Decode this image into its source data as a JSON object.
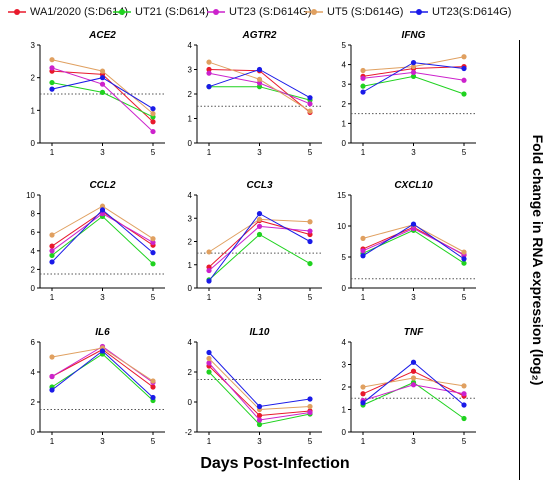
{
  "legend": [
    {
      "name": "WA1/2020 (S:D614)",
      "color": "#e8192c"
    },
    {
      "name": "UT21 (S:D614)",
      "color": "#1fd21f"
    },
    {
      "name": "UT23 (S:D614G)",
      "color": "#cc22cc"
    },
    {
      "name": "UT5 (S:D614G)",
      "color": "#e0a060"
    },
    {
      "name": "UT23(S:D614G)",
      "color": "#1a1ae8"
    }
  ],
  "y_axis_label": "Fold change in RNA expression (log₂)",
  "x_axis_label": "Days Post-Infection",
  "chart_data": [
    {
      "type": "line",
      "title": "ACE2",
      "x": [
        1,
        3,
        5
      ],
      "ylim": [
        0,
        3
      ],
      "yticks": [
        0,
        1,
        2,
        3
      ],
      "threshold": 1.5,
      "series": [
        {
          "name": "WA1/2020 (S:D614)",
          "values": [
            2.2,
            2.1,
            0.65
          ]
        },
        {
          "name": "UT21 (S:D614)",
          "values": [
            1.85,
            1.55,
            0.8
          ]
        },
        {
          "name": "UT23 (S:D614G)",
          "values": [
            2.3,
            1.8,
            0.35
          ]
        },
        {
          "name": "UT5 (S:D614G)",
          "values": [
            2.55,
            2.2,
            0.9
          ]
        },
        {
          "name": "UT23(S:D614G)",
          "values": [
            1.65,
            2.0,
            1.05
          ]
        }
      ]
    },
    {
      "type": "line",
      "title": "AGTR2",
      "x": [
        1,
        3,
        5
      ],
      "ylim": [
        0,
        4
      ],
      "yticks": [
        0,
        1,
        2,
        3,
        4
      ],
      "threshold": 1.5,
      "series": [
        {
          "name": "WA1/2020 (S:D614)",
          "values": [
            3.0,
            2.95,
            1.25
          ]
        },
        {
          "name": "UT21 (S:D614)",
          "values": [
            2.3,
            2.3,
            1.75
          ]
        },
        {
          "name": "UT23 (S:D614G)",
          "values": [
            2.85,
            2.45,
            1.6
          ]
        },
        {
          "name": "UT5 (S:D614G)",
          "values": [
            3.3,
            2.6,
            1.3
          ]
        },
        {
          "name": "UT23(S:D614G)",
          "values": [
            2.3,
            3.0,
            1.85
          ]
        }
      ]
    },
    {
      "type": "line",
      "title": "IFNG",
      "x": [
        1,
        3,
        5
      ],
      "ylim": [
        0,
        5
      ],
      "yticks": [
        0,
        1,
        2,
        3,
        4,
        5
      ],
      "threshold": 1.5,
      "series": [
        {
          "name": "WA1/2020 (S:D614)",
          "values": [
            3.4,
            3.8,
            3.9
          ]
        },
        {
          "name": "UT21 (S:D614)",
          "values": [
            2.9,
            3.4,
            2.5
          ]
        },
        {
          "name": "UT23 (S:D614G)",
          "values": [
            3.3,
            3.6,
            3.2
          ]
        },
        {
          "name": "UT5 (S:D614G)",
          "values": [
            3.7,
            3.9,
            4.4
          ]
        },
        {
          "name": "UT23(S:D614G)",
          "values": [
            2.6,
            4.1,
            3.8
          ]
        }
      ]
    },
    {
      "type": "line",
      "title": "CCL2",
      "x": [
        1,
        3,
        5
      ],
      "ylim": [
        0,
        10
      ],
      "yticks": [
        0,
        2,
        4,
        6,
        8,
        10
      ],
      "threshold": 1.5,
      "series": [
        {
          "name": "WA1/2020 (S:D614)",
          "values": [
            4.5,
            8.2,
            4.6
          ]
        },
        {
          "name": "UT21 (S:D614)",
          "values": [
            3.5,
            7.7,
            2.6
          ]
        },
        {
          "name": "UT23 (S:D614G)",
          "values": [
            4.0,
            8.0,
            4.9
          ]
        },
        {
          "name": "UT5 (S:D614G)",
          "values": [
            5.7,
            8.8,
            5.3
          ]
        },
        {
          "name": "UT23(S:D614G)",
          "values": [
            2.8,
            8.4,
            3.8
          ]
        }
      ]
    },
    {
      "type": "line",
      "title": "CCL3",
      "x": [
        1,
        3,
        5
      ],
      "ylim": [
        0,
        4
      ],
      "yticks": [
        0,
        1,
        2,
        3,
        4
      ],
      "threshold": 1.5,
      "series": [
        {
          "name": "WA1/2020 (S:D614)",
          "values": [
            0.9,
            2.9,
            2.3
          ]
        },
        {
          "name": "UT21 (S:D614)",
          "values": [
            0.35,
            2.3,
            1.05
          ]
        },
        {
          "name": "UT23 (S:D614G)",
          "values": [
            0.75,
            2.65,
            2.45
          ]
        },
        {
          "name": "UT5 (S:D614G)",
          "values": [
            1.55,
            2.95,
            2.85
          ]
        },
        {
          "name": "UT23(S:D614G)",
          "values": [
            0.3,
            3.2,
            2.0
          ]
        }
      ]
    },
    {
      "type": "line",
      "title": "CXCL10",
      "x": [
        1,
        3,
        5
      ],
      "ylim": [
        0,
        15
      ],
      "yticks": [
        0,
        5,
        10,
        15
      ],
      "threshold": 1.5,
      "series": [
        {
          "name": "WA1/2020 (S:D614)",
          "values": [
            6.3,
            9.8,
            5.3
          ]
        },
        {
          "name": "UT21 (S:D614)",
          "values": [
            5.6,
            9.3,
            4.0
          ]
        },
        {
          "name": "UT23 (S:D614G)",
          "values": [
            6.0,
            9.6,
            5.4
          ]
        },
        {
          "name": "UT5 (S:D614G)",
          "values": [
            8.0,
            10.2,
            5.8
          ]
        },
        {
          "name": "UT23(S:D614G)",
          "values": [
            5.2,
            10.3,
            4.7
          ]
        }
      ]
    },
    {
      "type": "line",
      "title": "IL6",
      "x": [
        1,
        3,
        5
      ],
      "ylim": [
        0,
        6
      ],
      "yticks": [
        0,
        2,
        4,
        6
      ],
      "threshold": 1.5,
      "series": [
        {
          "name": "WA1/2020 (S:D614)",
          "values": [
            3.7,
            5.5,
            3.0
          ]
        },
        {
          "name": "UT21 (S:D614)",
          "values": [
            3.0,
            5.2,
            2.1
          ]
        },
        {
          "name": "UT23 (S:D614G)",
          "values": [
            3.7,
            5.7,
            3.3
          ]
        },
        {
          "name": "UT5 (S:D614G)",
          "values": [
            5.0,
            5.6,
            3.4
          ]
        },
        {
          "name": "UT23(S:D614G)",
          "values": [
            2.8,
            5.4,
            2.3
          ]
        }
      ]
    },
    {
      "type": "line",
      "title": "IL10",
      "x": [
        1,
        3,
        5
      ],
      "ylim": [
        -2,
        4
      ],
      "yticks": [
        -2,
        0,
        2,
        4
      ],
      "threshold": 1.5,
      "series": [
        {
          "name": "WA1/2020 (S:D614)",
          "values": [
            2.4,
            -0.9,
            -0.6
          ]
        },
        {
          "name": "UT21 (S:D614)",
          "values": [
            2.0,
            -1.5,
            -0.8
          ]
        },
        {
          "name": "UT23 (S:D614G)",
          "values": [
            2.6,
            -1.2,
            -0.7
          ]
        },
        {
          "name": "UT5 (S:D614G)",
          "values": [
            2.9,
            -0.5,
            -0.3
          ]
        },
        {
          "name": "UT23(S:D614G)",
          "values": [
            3.3,
            -0.3,
            0.2
          ]
        }
      ]
    },
    {
      "type": "line",
      "title": "TNF",
      "x": [
        1,
        3,
        5
      ],
      "ylim": [
        0,
        4
      ],
      "yticks": [
        0,
        1,
        2,
        3,
        4
      ],
      "threshold": 1.5,
      "series": [
        {
          "name": "WA1/2020 (S:D614)",
          "values": [
            1.7,
            2.7,
            1.6
          ]
        },
        {
          "name": "UT21 (S:D614)",
          "values": [
            1.2,
            2.2,
            0.6
          ]
        },
        {
          "name": "UT23 (S:D614G)",
          "values": [
            1.4,
            2.1,
            1.7
          ]
        },
        {
          "name": "UT5 (S:D614G)",
          "values": [
            2.0,
            2.4,
            2.05
          ]
        },
        {
          "name": "UT23(S:D614G)",
          "values": [
            1.3,
            3.1,
            1.2
          ]
        }
      ]
    }
  ]
}
